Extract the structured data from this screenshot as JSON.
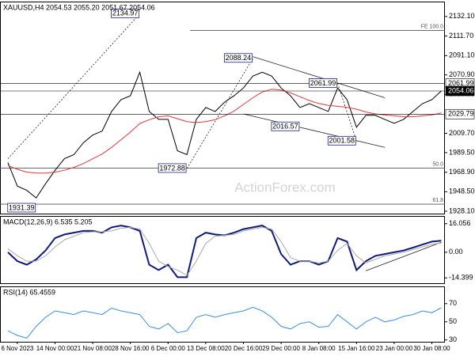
{
  "chart_data": [
    {
      "type": "line",
      "title": "XAUUSD,H4  2054.53 2055.20 2051.67 2054.06",
      "watermark": "ActionForex.com",
      "categories": [
        null,
        "6 Nov 2023",
        null,
        null,
        null,
        "14 Nov 00:00",
        null,
        null,
        null,
        "21 Nov 08:00",
        null,
        null,
        null,
        "28 Nov 16:00",
        null,
        null,
        null,
        "6 Dec 00:00",
        null,
        null,
        null,
        "13 Dec 08:00",
        null,
        null,
        null,
        "20 Dec 16:00",
        null,
        null,
        null,
        "29 Dec 00:00",
        null,
        null,
        null,
        "8 Jan 08:00",
        null,
        null,
        null,
        "15 Jan 16:00",
        null,
        null,
        null,
        "23 Jan 00:00",
        null,
        null,
        null,
        "30 Jan 08:00",
        null
      ],
      "series": [
        {
          "color": "#000000",
          "values": [
            1979,
            1954.4,
            1950,
            1942,
            1956.9,
            1970.9,
            1983.2,
            1987.3,
            1999.7,
            2007.9,
            2012,
            2032.6,
            2044.9,
            2049,
            2073.7,
            2032.6,
            2024.3,
            2024.3,
            1991.4,
            1987.3,
            2024.3,
            2036.7,
            2032.6,
            2042.4,
            2049,
            2057.2,
            2069.6,
            2073.7,
            2069.6,
            2057.2,
            2049,
            2036.7,
            2040.8,
            2036.7,
            2032.6,
            2057.2,
            2044.9,
            2016.1,
            2028.5,
            2028.5,
            2024.3,
            2020.2,
            2024.3,
            2032.6,
            2040.8,
            2044.9,
            2054.06
          ]
        },
        {
          "color": "#e0393e",
          "values": [
            1976,
            1972,
            1969,
            1968,
            1968,
            1969,
            1971,
            1974,
            1978,
            1983,
            1988,
            1995,
            2003,
            2011,
            2020,
            2024,
            2027,
            2028,
            2025,
            2022,
            2021,
            2022,
            2024,
            2028,
            2033,
            2040,
            2047,
            2053,
            2056,
            2055,
            2052,
            2048,
            2044,
            2041,
            2039,
            2038,
            2037,
            2035,
            2032,
            2030,
            2029,
            2028,
            2027,
            2027,
            2028,
            2029,
            2031
          ]
        }
      ],
      "ylim": [
        1925.6,
        2147.7
      ],
      "yticks": [
        {
          "value": 2132.1,
          "label": "2132.10"
        },
        {
          "value": 2111.7,
          "label": "2111.70"
        },
        {
          "value": 2091.1,
          "label": "2091.10"
        },
        {
          "value": 2070.9,
          "label": "2070.90"
        },
        {
          "value": 2050.5,
          "label": "2050.50"
        },
        {
          "value": 2009.7,
          "label": "2009.70"
        },
        {
          "value": 1989.5,
          "label": "1989.50"
        },
        {
          "value": 1968.9,
          "label": "1968.90"
        },
        {
          "value": 1948.5,
          "label": "1948.50"
        },
        {
          "value": 1928.1,
          "label": "1928.10"
        }
      ],
      "levels": [
        {
          "value": 2117.5,
          "label": "FE 100.0"
        },
        {
          "value": 1973.3,
          "label": "50.0"
        },
        {
          "value": 1935.5,
          "label": "61.8"
        }
      ],
      "price_labels": [
        {
          "value": 2061.99,
          "color": "#ffffff"
        },
        {
          "value": 2054.06,
          "color": "#000000"
        },
        {
          "value": 2029.79,
          "color": "#ffffff"
        }
      ],
      "annotations": [
        {
          "x": 14,
          "value": 2134.97
        },
        {
          "x": 26,
          "value": 2088.24
        },
        {
          "x": 35,
          "value": 2061.99
        },
        {
          "x": 31,
          "value": 2016.57
        },
        {
          "x": 37,
          "value": 2001.58
        },
        {
          "x": 19,
          "value": 1972.88
        },
        {
          "x": 3,
          "value": 1931.39
        }
      ],
      "trendlines": [
        {
          "dashed": true,
          "points": [
            [
              0,
              1983
            ],
            [
              14,
              2134.97
            ]
          ]
        },
        {
          "dashed": true,
          "points": [
            [
              19,
              1972.88
            ],
            [
              26,
              2088.24
            ]
          ]
        },
        {
          "dashed": false,
          "points": [
            [
              26,
              2090
            ],
            [
              40,
              2047
            ]
          ]
        },
        {
          "dashed": false,
          "points": [
            [
              25,
              2030
            ],
            [
              40,
              1995
            ]
          ]
        },
        {
          "dashed": true,
          "points": [
            [
              35,
              2061.99
            ],
            [
              37,
              2001.58
            ]
          ]
        }
      ]
    },
    {
      "type": "line",
      "title": "MACD(12,26,9) 6.535 5.205",
      "series": [
        {
          "color": "#101a7a",
          "values": [
            0,
            -5,
            -7,
            -4,
            1,
            8,
            10,
            11,
            12,
            12,
            11,
            14,
            15,
            14,
            12,
            -7,
            -10,
            -7,
            -14,
            -14,
            8,
            11,
            10,
            9.5,
            11,
            13,
            14,
            15,
            12,
            -1,
            -7,
            -5,
            -5,
            -7,
            -5,
            8,
            6,
            -10,
            -5,
            -2,
            -1,
            0,
            1,
            2.6,
            4.3,
            6,
            6.535
          ]
        },
        {
          "color": "#aaaaaa",
          "values": [
            2,
            -2,
            -5,
            -5,
            -2,
            3,
            7,
            9,
            11,
            11.5,
            11.5,
            12,
            13.5,
            14,
            13,
            5,
            -5,
            -8,
            -10,
            -13,
            -5,
            5,
            9,
            9.5,
            10,
            12,
            13,
            14,
            13,
            6,
            -3,
            -5,
            -5,
            -6,
            -5,
            1,
            5,
            -2,
            -6,
            -4,
            -2,
            -1,
            0,
            1.5,
            3,
            4.5,
            5.205
          ]
        }
      ],
      "ylim": [
        -17.4,
        20.4
      ],
      "yticks": [
        16.056,
        {
          "value": 0,
          "label": "0.00"
        },
        -14.399
      ],
      "trendlines": [
        {
          "dashed": false,
          "points": [
            [
              38,
              -10.4
            ],
            [
              46,
              5.6
            ]
          ]
        }
      ]
    },
    {
      "type": "line",
      "title": "RSI(14) 65.4559",
      "series": [
        {
          "color": "#3b8fe0",
          "values": [
            40,
            35,
            32,
            45,
            55,
            62,
            60,
            58,
            62,
            60,
            58,
            65,
            62,
            60,
            58,
            45,
            42,
            48,
            38,
            40,
            55,
            58,
            55,
            58,
            60,
            62,
            66,
            62,
            55,
            45,
            42,
            48,
            50,
            44,
            45,
            58,
            50,
            42,
            50,
            55,
            50,
            52,
            56,
            58,
            62,
            60,
            65.4559
          ]
        }
      ],
      "ylim": [
        28,
        89
      ],
      "yticks": [
        70,
        50,
        30
      ]
    }
  ]
}
